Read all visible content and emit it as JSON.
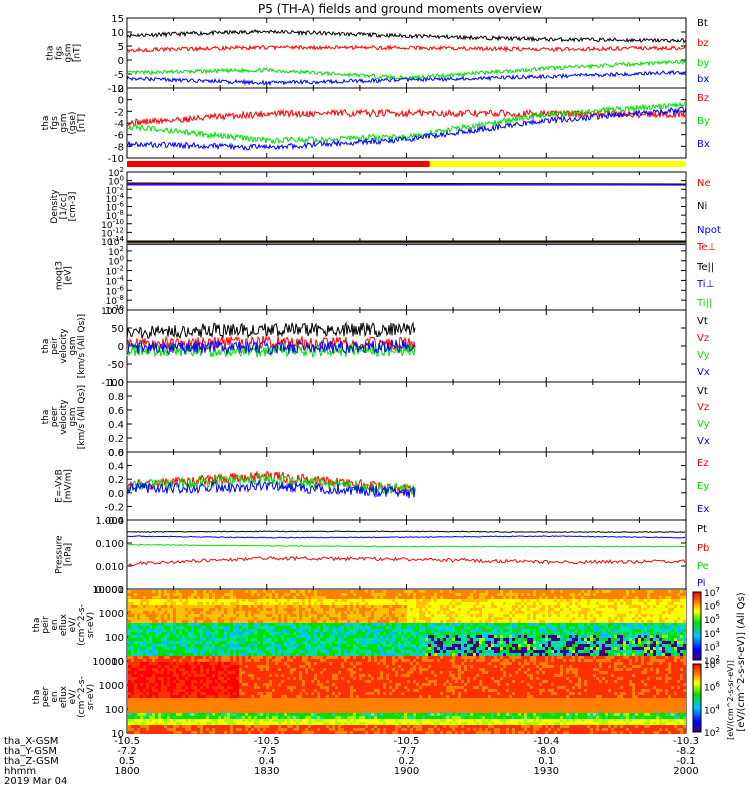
{
  "title": "P5 (TH-A) fields and ground moments overview",
  "colors": {
    "black": "#000000",
    "red": "#ff0000",
    "green": "#00e000",
    "blue": "#0000ff",
    "yellow": "#ffff00",
    "purple": "#8000a0"
  },
  "time_axis": {
    "row_labels": [
      "tha_X-GSM",
      "tha_Y-GSM",
      "tha_Z-GSM",
      "hhmm",
      "2019 Mar 04"
    ],
    "ticks": [
      {
        "hhmm": "1800",
        "x": "-10.5",
        "y": "-7.2",
        "z": "0.5"
      },
      {
        "hhmm": "1830",
        "x": "-10.5",
        "y": "-7.5",
        "z": "0.4"
      },
      {
        "hhmm": "1900",
        "x": "-10.5",
        "y": "-7.7",
        "z": "0.2"
      },
      {
        "hhmm": "1930",
        "x": "-10.4",
        "y": "-8.0",
        "z": "0.1"
      },
      {
        "hhmm": "2000",
        "x": "-10.3",
        "y": "-8.2",
        "z": "-0.1"
      }
    ]
  },
  "colorbar": {
    "label": "[eV/(cm^2-s-sr-eV)] (All Qs)",
    "label2": "[eV/(cm^2-s-sr-eV)]",
    "ticks1": [
      "10^7",
      "10^6",
      "10^5",
      "10^4",
      "10^3",
      "10^2"
    ],
    "ticks2": [
      "10^8",
      "10^6",
      "10^4",
      "10^2"
    ]
  },
  "chart_data": [
    {
      "panel": "fgs-gsm-mag",
      "type": "line",
      "ylabel": [
        "tha",
        "fgs",
        "gsm",
        "[nT]"
      ],
      "ylim": [
        -10,
        15
      ],
      "ticks": [
        "15",
        "10",
        "5",
        "0",
        "-5",
        "-10"
      ],
      "x": [
        "1800",
        "1830",
        "1900",
        "1930",
        "2000"
      ],
      "series": [
        {
          "name": "Bt",
          "color": "black",
          "values": [
            8.8,
            10.2,
            8.6,
            7.4,
            6.9
          ]
        },
        {
          "name": "bz",
          "color": "red",
          "values": [
            3.5,
            4.5,
            4.4,
            3.8,
            4.3
          ]
        },
        {
          "name": "by",
          "color": "green",
          "values": [
            -4.6,
            -3.6,
            -6.4,
            -3.0,
            -0.5
          ]
        },
        {
          "name": "bx",
          "color": "blue",
          "values": [
            -6.5,
            -8.2,
            -7.1,
            -5.9,
            -4.4
          ]
        }
      ]
    },
    {
      "panel": "fgs-gsm-gse",
      "type": "line",
      "ylabel": [
        "tha",
        "fgs",
        "gsm",
        "(gse)",
        "[nT]"
      ],
      "ylim": [
        -10,
        2
      ],
      "ticks": [
        "2",
        "0",
        "-2",
        "-4",
        "-6",
        "-8",
        "-10"
      ],
      "x": [
        "1800",
        "1830",
        "1900",
        "1930",
        "2000"
      ],
      "series": [
        {
          "name": "Bz",
          "color": "red",
          "values": [
            -4.0,
            -2.4,
            -2.3,
            -2.4,
            -2.5
          ]
        },
        {
          "name": "By",
          "color": "green",
          "values": [
            -4.6,
            -7.0,
            -6.3,
            -2.5,
            -0.9
          ]
        },
        {
          "name": "Bx",
          "color": "blue",
          "values": [
            -7.6,
            -8.2,
            -6.8,
            -3.6,
            -1.7
          ]
        }
      ]
    },
    {
      "panel": "mode-bar",
      "type": "bar",
      "segments": [
        {
          "color": "red",
          "from": "1800",
          "to": "1905"
        },
        {
          "color": "yellow",
          "from": "1905",
          "to": "2000"
        }
      ]
    },
    {
      "panel": "density",
      "type": "line",
      "ylabel": [
        "Density",
        "[1/cc]",
        "[cm-3]"
      ],
      "ticks": [
        "10^2",
        "10^0",
        "10^-2",
        "10^-4",
        "10^-6",
        "10^-8",
        "10^-10",
        "10^-12",
        "10^-14"
      ],
      "series": [
        {
          "name": "Ne",
          "color": "red"
        },
        {
          "name": "Ni",
          "color": "black"
        },
        {
          "name": "Npot",
          "color": "blue"
        }
      ]
    },
    {
      "panel": "temperature",
      "type": "line",
      "ylabel": [
        "moqt3",
        "[eV]"
      ],
      "ticks": [
        "10^4",
        "10^2",
        "10^0",
        "10^-2",
        "10^-4",
        "10^-6",
        "10^-8",
        "10^-10"
      ],
      "series": [
        {
          "name": "Te⊥",
          "color": "red"
        },
        {
          "name": "Te||",
          "color": "black"
        },
        {
          "name": "Ti⊥",
          "color": "blue"
        },
        {
          "name": "Ti||",
          "color": "green"
        }
      ]
    },
    {
      "panel": "peir-velocity",
      "type": "line",
      "ylabel": [
        "tha",
        "peir",
        "velocity",
        "gsm",
        "[km/s (All Qs)]"
      ],
      "ylim": [
        -100,
        100
      ],
      "ticks": [
        "100",
        "50",
        "0",
        "-50",
        "-100"
      ],
      "x": [
        "1800",
        "1830",
        "1900"
      ],
      "series": [
        {
          "name": "Vt",
          "color": "black",
          "values": [
            40,
            45,
            45
          ]
        },
        {
          "name": "Vz",
          "color": "red",
          "values": [
            5,
            10,
            5
          ]
        },
        {
          "name": "Vy",
          "color": "green",
          "values": [
            -10,
            -15,
            -10
          ]
        },
        {
          "name": "Vx",
          "color": "blue",
          "values": [
            -5,
            -5,
            0
          ]
        }
      ]
    },
    {
      "panel": "peer-velocity",
      "type": "line",
      "ylabel": [
        "tha",
        "peer",
        "velocity",
        "gsm",
        "[km/s (All Qs)]"
      ],
      "ylim": [
        0,
        1
      ],
      "ticks": [
        "1.0",
        "0.8",
        "0.6",
        "0.4",
        "0.2",
        "0.0"
      ],
      "series": [
        {
          "name": "Vt",
          "color": "black"
        },
        {
          "name": "Vz",
          "color": "red"
        },
        {
          "name": "Vy",
          "color": "green"
        },
        {
          "name": "Vx",
          "color": "blue"
        }
      ]
    },
    {
      "panel": "e-field",
      "type": "line",
      "ylabel": [
        "E=-VxB",
        "[mV/m]"
      ],
      "ylim": [
        -0.4,
        0.6
      ],
      "ticks": [
        "0.6",
        "0.4",
        "0.2",
        "0.0",
        "-0.2",
        "-0.4"
      ],
      "x": [
        "1800",
        "1830",
        "1900"
      ],
      "series": [
        {
          "name": "Ez",
          "color": "red",
          "values": [
            0.1,
            0.25,
            0.05
          ]
        },
        {
          "name": "Ey",
          "color": "green",
          "values": [
            0.1,
            0.2,
            0.05
          ]
        },
        {
          "name": "Ex",
          "color": "blue",
          "values": [
            0.05,
            0.1,
            0.0
          ]
        }
      ]
    },
    {
      "panel": "pressure",
      "type": "line",
      "ylabel": [
        "Pressure",
        "[nPa]"
      ],
      "ticks": [
        "1.000",
        "0.100",
        "0.010",
        "0.001"
      ],
      "x": [
        "1800",
        "1830",
        "1900",
        "1930",
        "2000"
      ],
      "series": [
        {
          "name": "Pt",
          "color": "black",
          "values": [
            0.3,
            0.32,
            0.32,
            0.3,
            0.3
          ]
        },
        {
          "name": "Pb",
          "color": "red",
          "values": [
            0.012,
            0.022,
            0.02,
            0.015,
            0.016
          ]
        },
        {
          "name": "Pe",
          "color": "green",
          "values": [
            0.085,
            0.075,
            0.07,
            0.07,
            0.07
          ]
        },
        {
          "name": "Pi",
          "color": "blue",
          "values": [
            0.2,
            0.17,
            0.18,
            0.2,
            0.17
          ]
        }
      ]
    },
    {
      "panel": "peir-en-eflux",
      "type": "heatmap",
      "ylabel": [
        "tha",
        "peir",
        "en",
        "eflux",
        "eV/",
        "(cm^2-s-",
        "sr-eV)"
      ],
      "ticks": [
        "10000",
        "1000",
        "100",
        "10"
      ]
    },
    {
      "panel": "peer-en-eflux",
      "type": "heatmap",
      "ylabel": [
        "tha",
        "peer",
        "en",
        "eflux",
        "eV/",
        "(cm^2-s-",
        "sr-eV)"
      ],
      "ticks": [
        "10000",
        "1000",
        "100",
        "10"
      ]
    }
  ]
}
